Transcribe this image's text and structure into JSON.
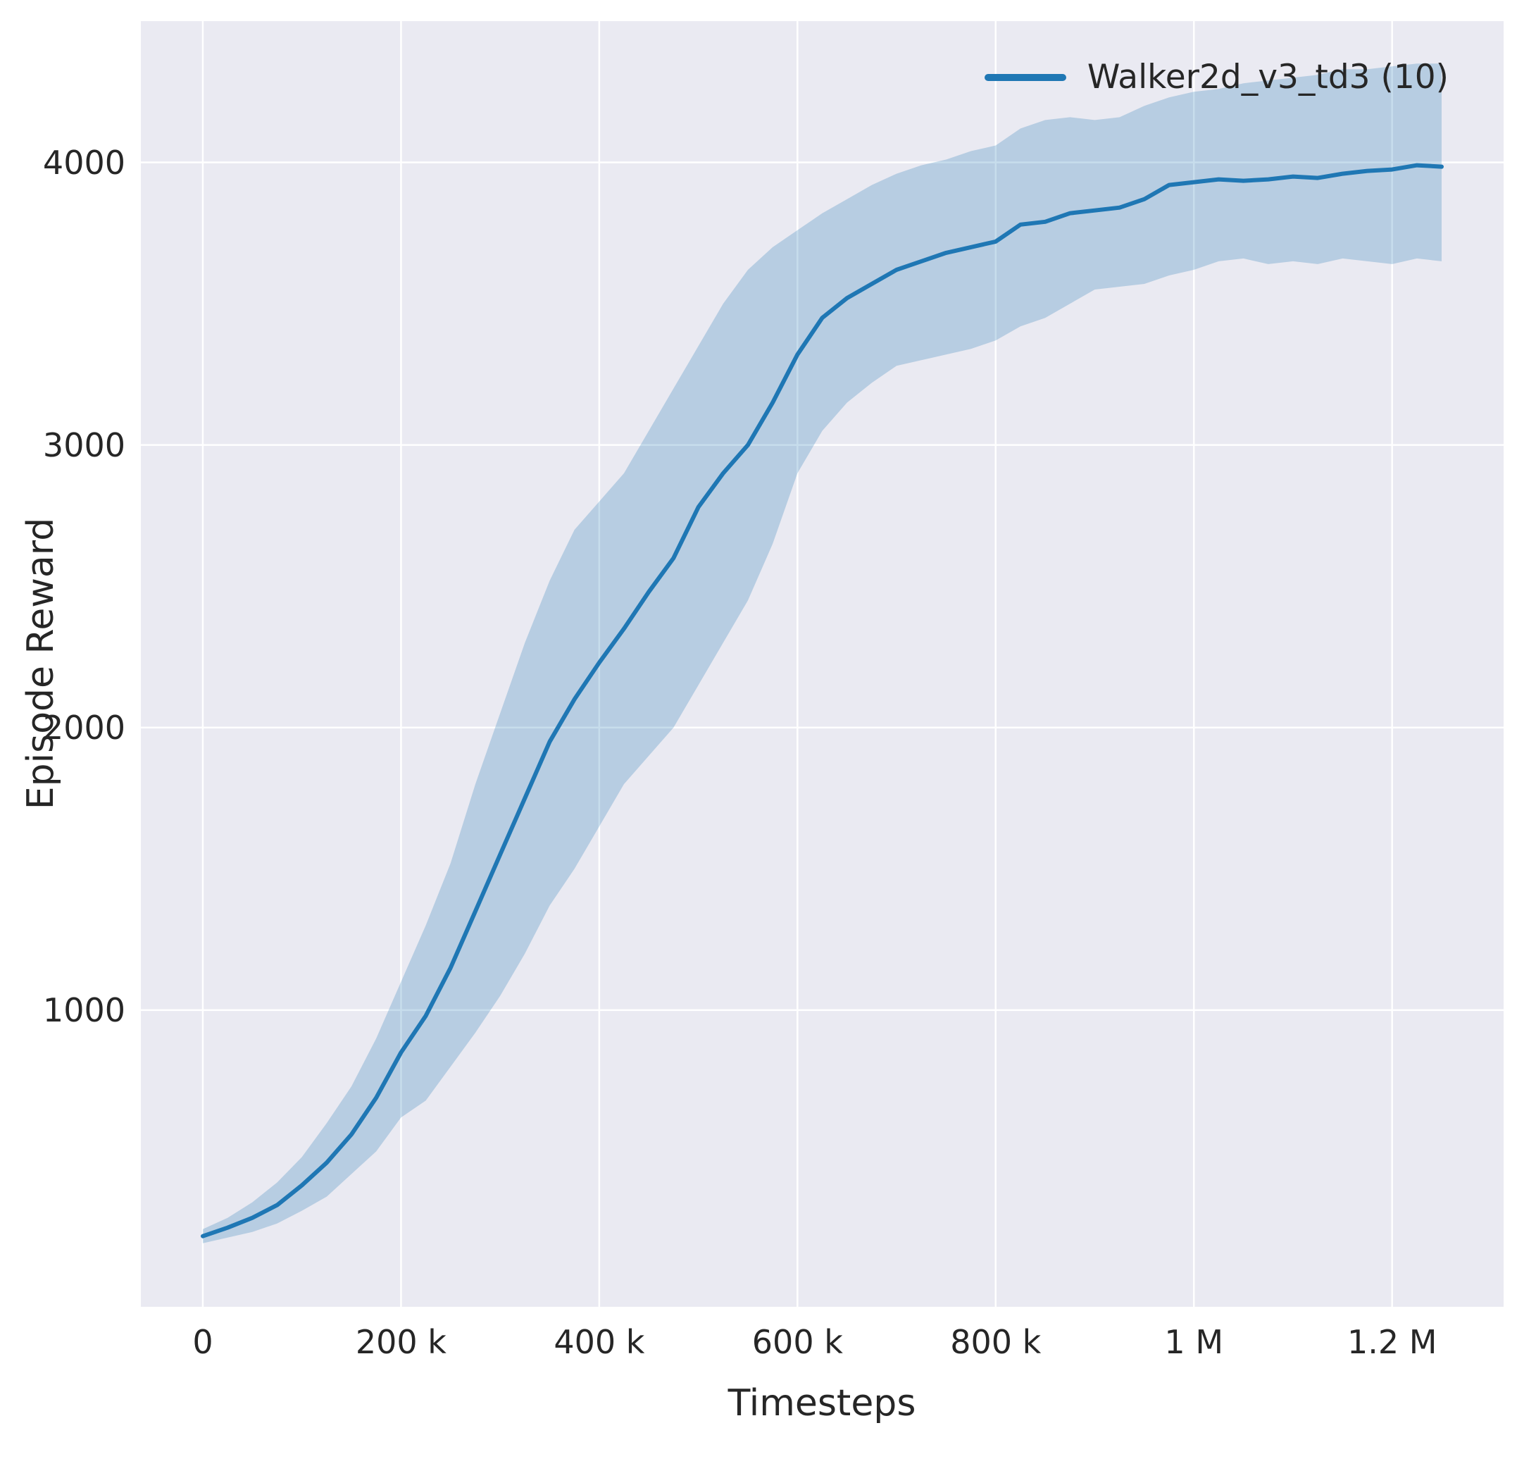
{
  "colors": {
    "figure_background": "#ffffff",
    "plot_background": "#eaeaf2",
    "gridline": "#ffffff",
    "text": "#262626",
    "series_blue": "#1f77b4"
  },
  "chart_data": {
    "type": "line",
    "title": "",
    "xlabel": "Timesteps",
    "ylabel": "Episode Reward",
    "grid": true,
    "legend_position": "upper right",
    "legend": [
      {
        "label": "Walker2d_v3_td3 (10)",
        "color": "#1f77b4"
      }
    ],
    "xlim": [
      -62500,
      1312500
    ],
    "ylim": [
      -50,
      4500
    ],
    "xticks": [
      {
        "value": 0,
        "label": "0"
      },
      {
        "value": 200000,
        "label": "200 k"
      },
      {
        "value": 400000,
        "label": "400 k"
      },
      {
        "value": 600000,
        "label": "600 k"
      },
      {
        "value": 800000,
        "label": "800 k"
      },
      {
        "value": 1000000,
        "label": "1 M"
      },
      {
        "value": 1200000,
        "label": "1.2 M"
      }
    ],
    "yticks": [
      {
        "value": 1000,
        "label": "1000"
      },
      {
        "value": 2000,
        "label": "2000"
      },
      {
        "value": 3000,
        "label": "3000"
      },
      {
        "value": 4000,
        "label": "4000"
      }
    ],
    "series": [
      {
        "name": "Walker2d_v3_td3 (10)",
        "color": "#1f77b4",
        "line_width": 6,
        "band_alpha": 0.25,
        "x": [
          0,
          25000,
          50000,
          75000,
          100000,
          125000,
          150000,
          175000,
          200000,
          225000,
          250000,
          275000,
          300000,
          325000,
          350000,
          375000,
          400000,
          425000,
          450000,
          475000,
          500000,
          525000,
          550000,
          575000,
          600000,
          625000,
          650000,
          675000,
          700000,
          725000,
          750000,
          775000,
          800000,
          825000,
          850000,
          875000,
          900000,
          925000,
          950000,
          975000,
          1000000,
          1025000,
          1050000,
          1075000,
          1100000,
          1125000,
          1150000,
          1175000,
          1200000,
          1225000,
          1250000
        ],
        "mean": [
          200,
          230,
          265,
          310,
          380,
          460,
          560,
          690,
          850,
          980,
          1150,
          1350,
          1550,
          1750,
          1950,
          2100,
          2230,
          2350,
          2480,
          2600,
          2780,
          2900,
          3000,
          3150,
          3320,
          3450,
          3520,
          3570,
          3620,
          3650,
          3680,
          3700,
          3720,
          3780,
          3790,
          3820,
          3830,
          3840,
          3870,
          3920,
          3930,
          3940,
          3935,
          3940,
          3950,
          3945,
          3960,
          3970,
          3975,
          3990,
          3985
        ],
        "lower": [
          175,
          195,
          215,
          245,
          290,
          340,
          420,
          500,
          620,
          680,
          800,
          920,
          1050,
          1200,
          1370,
          1500,
          1650,
          1800,
          1900,
          2000,
          2150,
          2300,
          2450,
          2650,
          2900,
          3050,
          3150,
          3220,
          3280,
          3300,
          3320,
          3340,
          3370,
          3420,
          3450,
          3500,
          3550,
          3560,
          3570,
          3600,
          3620,
          3650,
          3660,
          3640,
          3650,
          3640,
          3660,
          3650,
          3640,
          3660,
          3650
        ],
        "upper": [
          225,
          265,
          320,
          390,
          480,
          600,
          730,
          900,
          1100,
          1300,
          1520,
          1800,
          2050,
          2300,
          2520,
          2700,
          2800,
          2900,
          3050,
          3200,
          3350,
          3500,
          3620,
          3700,
          3760,
          3820,
          3870,
          3920,
          3960,
          3990,
          4010,
          4040,
          4060,
          4120,
          4150,
          4160,
          4150,
          4160,
          4200,
          4230,
          4250,
          4260,
          4280,
          4290,
          4300,
          4310,
          4330,
          4330,
          4340,
          4350,
          4350
        ]
      }
    ]
  }
}
